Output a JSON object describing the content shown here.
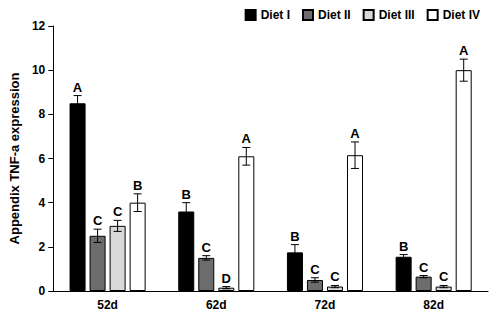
{
  "chart_data": {
    "type": "bar",
    "y_label": "Appendix TNF-a expression",
    "categories": [
      "52d",
      "62d",
      "72d",
      "82d"
    ],
    "series": [
      {
        "name": "Diet I",
        "color": "#000000",
        "values": [
          8.5,
          3.6,
          1.75,
          1.55
        ],
        "errors": [
          0.35,
          0.4,
          0.35,
          0.1
        ],
        "letters": [
          "A",
          "B",
          "B",
          "B"
        ]
      },
      {
        "name": "Diet II",
        "color": "#6d6d6d",
        "values": [
          2.5,
          1.5,
          0.5,
          0.65
        ],
        "errors": [
          0.3,
          0.1,
          0.1,
          0.05
        ],
        "letters": [
          "C",
          "C",
          "C",
          "C"
        ]
      },
      {
        "name": "Diet III",
        "color": "#d9d9d9",
        "values": [
          2.95,
          0.15,
          0.2,
          0.2
        ],
        "errors": [
          0.25,
          0.05,
          0.05,
          0.05
        ],
        "letters": [
          "C",
          "D",
          "C",
          "C"
        ]
      },
      {
        "name": "Diet IV",
        "color": "#ffffff",
        "values": [
          4.0,
          6.1,
          6.15,
          10.0
        ],
        "errors": [
          0.4,
          0.4,
          0.6,
          0.5
        ],
        "letters": [
          "B",
          "A",
          "A",
          "A"
        ]
      }
    ],
    "ylim": [
      0,
      12
    ],
    "yticks": [
      0,
      2,
      4,
      6,
      8,
      10,
      12
    ],
    "grid": false,
    "legend": "top right"
  }
}
